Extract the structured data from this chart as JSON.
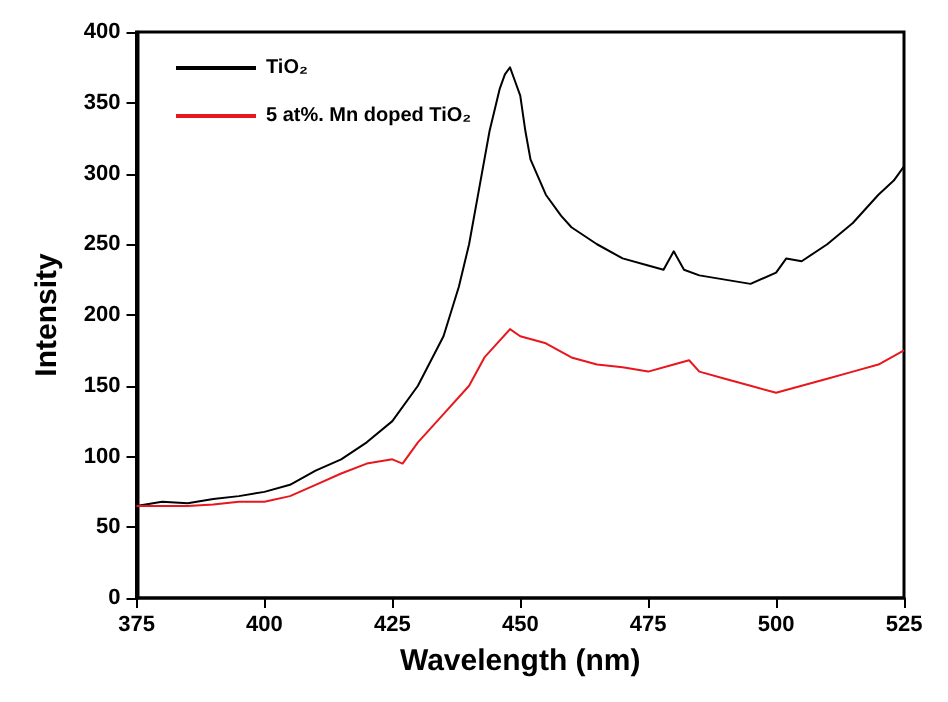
{
  "chart_data": {
    "type": "line",
    "xlabel": "Wavelength (nm)",
    "ylabel": "Intensity",
    "xlim": [
      375,
      525
    ],
    "xticks": [
      375,
      400,
      425,
      450,
      475,
      500,
      525
    ],
    "ylim": [
      0,
      400
    ],
    "yticks": [
      0,
      50,
      100,
      150,
      200,
      250,
      300,
      350,
      400
    ],
    "grid": false,
    "legend": "top left",
    "marker": "none",
    "line_style": "solid",
    "series": [
      {
        "name": "TiO₂",
        "color": "#000000",
        "x": [
          375,
          380,
          385,
          390,
          395,
          400,
          405,
          410,
          415,
          420,
          425,
          430,
          435,
          438,
          440,
          442,
          444,
          446,
          447,
          448,
          449,
          450,
          451,
          452,
          455,
          458,
          460,
          465,
          470,
          475,
          478,
          480,
          482,
          485,
          490,
          495,
          500,
          502,
          505,
          510,
          515,
          520,
          523,
          525
        ],
        "values": [
          65,
          68,
          67,
          70,
          72,
          75,
          80,
          90,
          98,
          110,
          125,
          150,
          185,
          220,
          250,
          290,
          330,
          360,
          370,
          375,
          365,
          355,
          330,
          310,
          285,
          270,
          262,
          250,
          240,
          235,
          232,
          245,
          232,
          228,
          225,
          222,
          230,
          240,
          238,
          250,
          265,
          285,
          295,
          305
        ]
      },
      {
        "name": "5 at%. Mn doped TiO₂",
        "color": "#e8171d",
        "x": [
          375,
          380,
          385,
          390,
          395,
          400,
          405,
          410,
          415,
          420,
          425,
          427,
          430,
          435,
          440,
          443,
          445,
          448,
          450,
          455,
          460,
          465,
          470,
          475,
          480,
          483,
          485,
          490,
          495,
          500,
          505,
          510,
          515,
          520,
          525
        ],
        "values": [
          65,
          65,
          65,
          66,
          68,
          68,
          72,
          80,
          88,
          95,
          98,
          95,
          110,
          130,
          150,
          170,
          178,
          190,
          185,
          180,
          170,
          165,
          163,
          160,
          165,
          168,
          160,
          155,
          150,
          145,
          150,
          155,
          160,
          165,
          175
        ]
      }
    ]
  }
}
